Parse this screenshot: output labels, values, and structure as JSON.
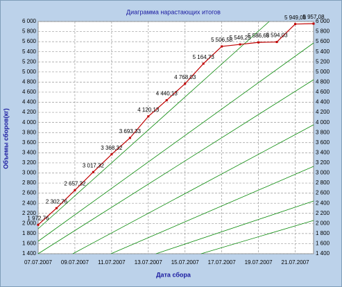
{
  "chart_data": {
    "type": "line",
    "title": "Диаграмма нарастающих итогов",
    "x_label": "Дата сбора",
    "y_label": "Объемы сборов(кг)",
    "x": [
      "07.07.2007",
      "08.07.2007",
      "09.07.2007",
      "10.07.2007",
      "11.07.2007",
      "12.07.2007",
      "13.07.2007",
      "14.07.2007",
      "15.07.2007",
      "16.07.2007",
      "17.07.2007",
      "18.07.2007",
      "19.07.2007",
      "20.07.2007",
      "21.07.2007",
      "22.07.2007"
    ],
    "series": [
      {
        "name": "Объемы сборов",
        "color": "#c00000",
        "values": [
          1972.76,
          2302.76,
          2657.32,
          3017.32,
          3368.32,
          3693.33,
          4120.13,
          4440.13,
          4768.03,
          5164.73,
          5506.58,
          5546.25,
          5586.68,
          5594.03,
          5949.08,
          5957.08
        ],
        "value_labels": [
          "1 972,76",
          "2 302,76",
          "2 657,32",
          "3 017,32",
          "3 368,32",
          "3 693,33",
          "4 120,13",
          "4 440,13",
          "4 768,03",
          "5 164,73",
          "5 506,58",
          "5 546,25",
          "5 586,68",
          "5 594,03",
          "5 949,08",
          "5 957,08"
        ]
      }
    ],
    "xlim": [
      "07.07.2007",
      "22.07.2007"
    ],
    "xticks": [
      "07.07.2007",
      "09.07.2007",
      "11.07.2007",
      "13.07.2007",
      "15.07.2007",
      "17.07.2007",
      "19.07.2007",
      "21.07.2007"
    ],
    "ylim": [
      1400,
      6000
    ],
    "yticks": [
      {
        "value": 1400,
        "label": "1 400"
      },
      {
        "value": 1600,
        "label": "1 600"
      },
      {
        "value": 1800,
        "label": "1 800"
      },
      {
        "value": 2000,
        "label": "2 000"
      },
      {
        "value": 2200,
        "label": "2 200"
      },
      {
        "value": 2400,
        "label": "2 400"
      },
      {
        "value": 2600,
        "label": "2 600"
      },
      {
        "value": 2800,
        "label": "2 800"
      },
      {
        "value": 3000,
        "label": "3 000"
      },
      {
        "value": 3200,
        "label": "3 200"
      },
      {
        "value": 3400,
        "label": "3 400"
      },
      {
        "value": 3600,
        "label": "3 600"
      },
      {
        "value": 3800,
        "label": "3 800"
      },
      {
        "value": 4000,
        "label": "4 000"
      },
      {
        "value": 4200,
        "label": "4 200"
      },
      {
        "value": 4400,
        "label": "4 400"
      },
      {
        "value": 4600,
        "label": "4 600"
      },
      {
        "value": 4800,
        "label": "4 800"
      },
      {
        "value": 5000,
        "label": "5 000"
      },
      {
        "value": 5200,
        "label": "5 200"
      },
      {
        "value": 5400,
        "label": "5 400"
      },
      {
        "value": 5600,
        "label": "5 600"
      },
      {
        "value": 5800,
        "label": "5 800"
      },
      {
        "value": 6000,
        "label": "6 000"
      }
    ],
    "grid": true
  }
}
